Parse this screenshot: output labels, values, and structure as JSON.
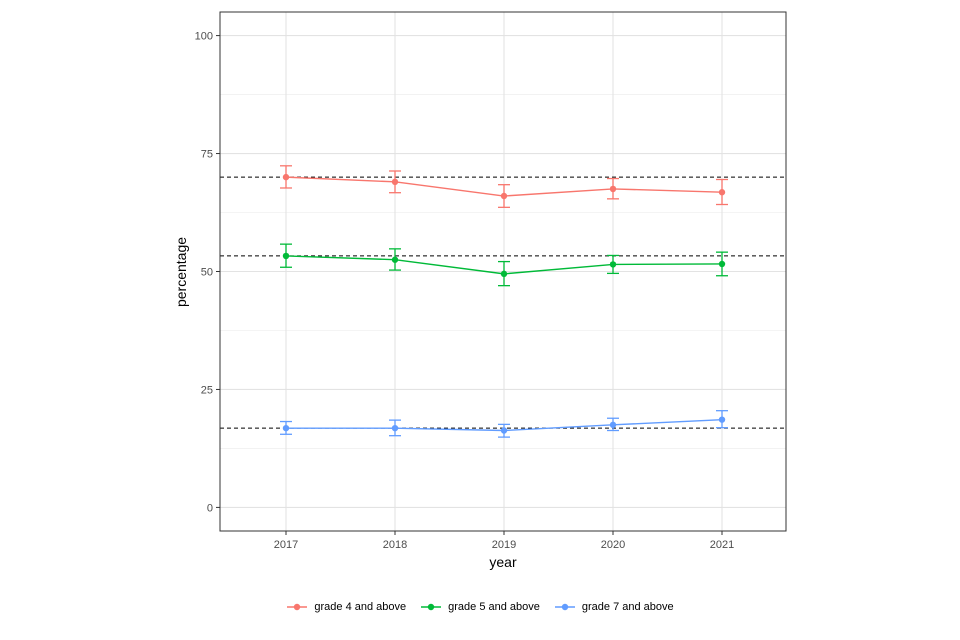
{
  "chart_data": {
    "type": "line",
    "xlabel": "year",
    "ylabel": "percentage",
    "x": [
      "2017",
      "2018",
      "2019",
      "2020",
      "2021"
    ],
    "ylim": [
      -5,
      105
    ],
    "yticks": [
      0,
      25,
      50,
      75,
      100
    ],
    "grid": true,
    "legend_position": "bottom",
    "series": [
      {
        "name": "grade 4 and above",
        "color": "#F8766D",
        "values": [
          70.0,
          69.0,
          66.0,
          67.5,
          66.8
        ],
        "lower": [
          67.7,
          66.7,
          63.6,
          65.4,
          64.2
        ],
        "upper": [
          72.4,
          71.3,
          68.4,
          69.7,
          69.5
        ]
      },
      {
        "name": "grade 5 and above",
        "color": "#00BA38",
        "values": [
          53.3,
          52.5,
          49.5,
          51.5,
          51.6
        ],
        "lower": [
          50.9,
          50.3,
          47.0,
          49.6,
          49.1
        ],
        "upper": [
          55.8,
          54.8,
          52.1,
          53.4,
          54.1
        ]
      },
      {
        "name": "grade 7 and above",
        "color": "#619CFF",
        "values": [
          16.8,
          16.8,
          16.3,
          17.5,
          18.6
        ],
        "lower": [
          15.5,
          15.2,
          14.9,
          16.3,
          16.9
        ],
        "upper": [
          18.2,
          18.5,
          17.6,
          18.9,
          20.5
        ]
      }
    ],
    "reference_lines": [
      70.0,
      53.3,
      16.8
    ]
  }
}
